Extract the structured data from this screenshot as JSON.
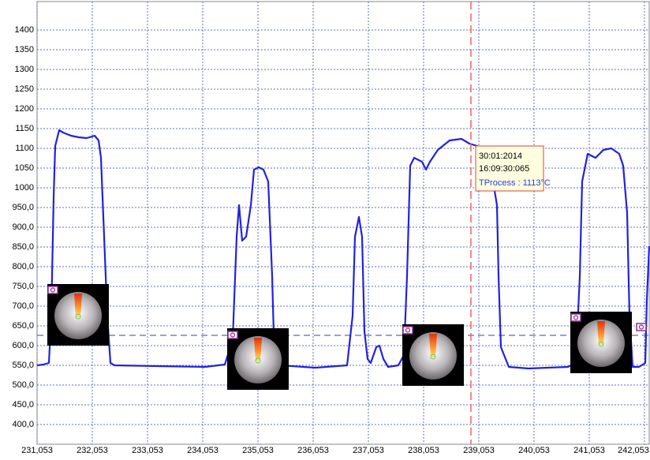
{
  "chart_data": {
    "type": "line",
    "x": [
      231.053,
      231.167,
      231.267,
      231.31,
      231.353,
      231.382,
      231.453,
      231.524,
      231.667,
      231.81,
      231.953,
      232.096,
      232.167,
      232.21,
      232.267,
      232.324,
      232.382,
      232.453,
      233.239,
      234.096,
      234.453,
      234.596,
      234.667,
      234.71,
      234.767,
      234.839,
      234.924,
      234.982,
      235.067,
      235.153,
      235.239,
      235.31,
      235.353,
      235.453,
      236.096,
      236.667,
      236.767,
      236.81,
      236.882,
      236.939,
      236.982,
      237.039,
      237.096,
      237.196,
      237.253,
      237.324,
      237.41,
      237.596,
      237.696,
      237.753,
      237.81,
      237.882,
      238.024,
      238.096,
      238.167,
      238.31,
      238.524,
      238.739,
      238.882,
      239.024,
      239.167,
      239.31,
      239.382,
      239.41,
      239.453,
      239.596,
      239.953,
      240.667,
      240.81,
      240.882,
      240.924,
      241.024,
      241.167,
      241.31,
      241.453,
      241.596,
      241.667,
      241.739,
      241.782,
      241.839,
      241.953,
      242.067,
      242.096,
      242.139
    ],
    "series": [
      {
        "color": "#2222dd",
        "values": [
          550,
          552,
          556,
          676,
          976,
          1106,
          1146,
          1140,
          1132,
          1128,
          1126,
          1132,
          1120,
          1076,
          876,
          676,
          556,
          550,
          548,
          546,
          552,
          616,
          876,
          956,
          866,
          876,
          956,
          1046,
          1052,
          1046,
          1016,
          776,
          556,
          550,
          544,
          550,
          676,
          876,
          926,
          876,
          636,
          566,
          556,
          596,
          600,
          566,
          546,
          550,
          576,
          776,
          1056,
          1076,
          1066,
          1046,
          1066,
          1096,
          1120,
          1124,
          1112,
          1106,
          1076,
          1016,
          956,
          776,
          596,
          546,
          542,
          546,
          556,
          776,
          1016,
          1086,
          1076,
          1096,
          1100,
          1086,
          1056,
          936,
          676,
          546,
          546,
          556,
          716,
          852
        ]
      }
    ],
    "xlim": [
      231.053,
      242.139
    ],
    "ylim": [
      350,
      1472
    ],
    "xticks": [
      {
        "value": 231.053,
        "label": "231,053"
      },
      {
        "value": 232.053,
        "label": "232,053"
      },
      {
        "value": 233.053,
        "label": "233,053"
      },
      {
        "value": 234.053,
        "label": "234,053"
      },
      {
        "value": 235.053,
        "label": "235,053"
      },
      {
        "value": 236.053,
        "label": "236,053"
      },
      {
        "value": 237.053,
        "label": "237,053"
      },
      {
        "value": 238.053,
        "label": "238,053"
      },
      {
        "value": 239.053,
        "label": "239,053"
      },
      {
        "value": 240.053,
        "label": "240,053"
      },
      {
        "value": 241.053,
        "label": "241,053"
      },
      {
        "value": 242.053,
        "label": "242,053"
      }
    ],
    "yticks": [
      1400,
      1350,
      1300,
      1250,
      1200,
      1150,
      1100,
      1050,
      1000,
      {
        "value": 950,
        "label": "950,0"
      },
      {
        "value": 900,
        "label": "900,0"
      },
      {
        "value": 850,
        "label": "850,0"
      },
      {
        "value": 800,
        "label": "800,0"
      },
      {
        "value": 750,
        "label": "750,0"
      },
      {
        "value": 700,
        "label": "700,0"
      },
      {
        "value": 650,
        "label": "650,0"
      },
      {
        "value": 600,
        "label": "600,0"
      },
      {
        "value": 550,
        "label": "550,0"
      },
      {
        "value": 500,
        "label": "500,0"
      },
      {
        "value": 450,
        "label": "450,0"
      },
      {
        "value": 400,
        "label": "400,0"
      }
    ],
    "grid": true,
    "threshold": 626,
    "cursor_x": 238.91,
    "tooltip": {
      "date": "30:01:2014",
      "time": "16:09:30:065",
      "value": "TProcess : 1113°C"
    }
  }
}
